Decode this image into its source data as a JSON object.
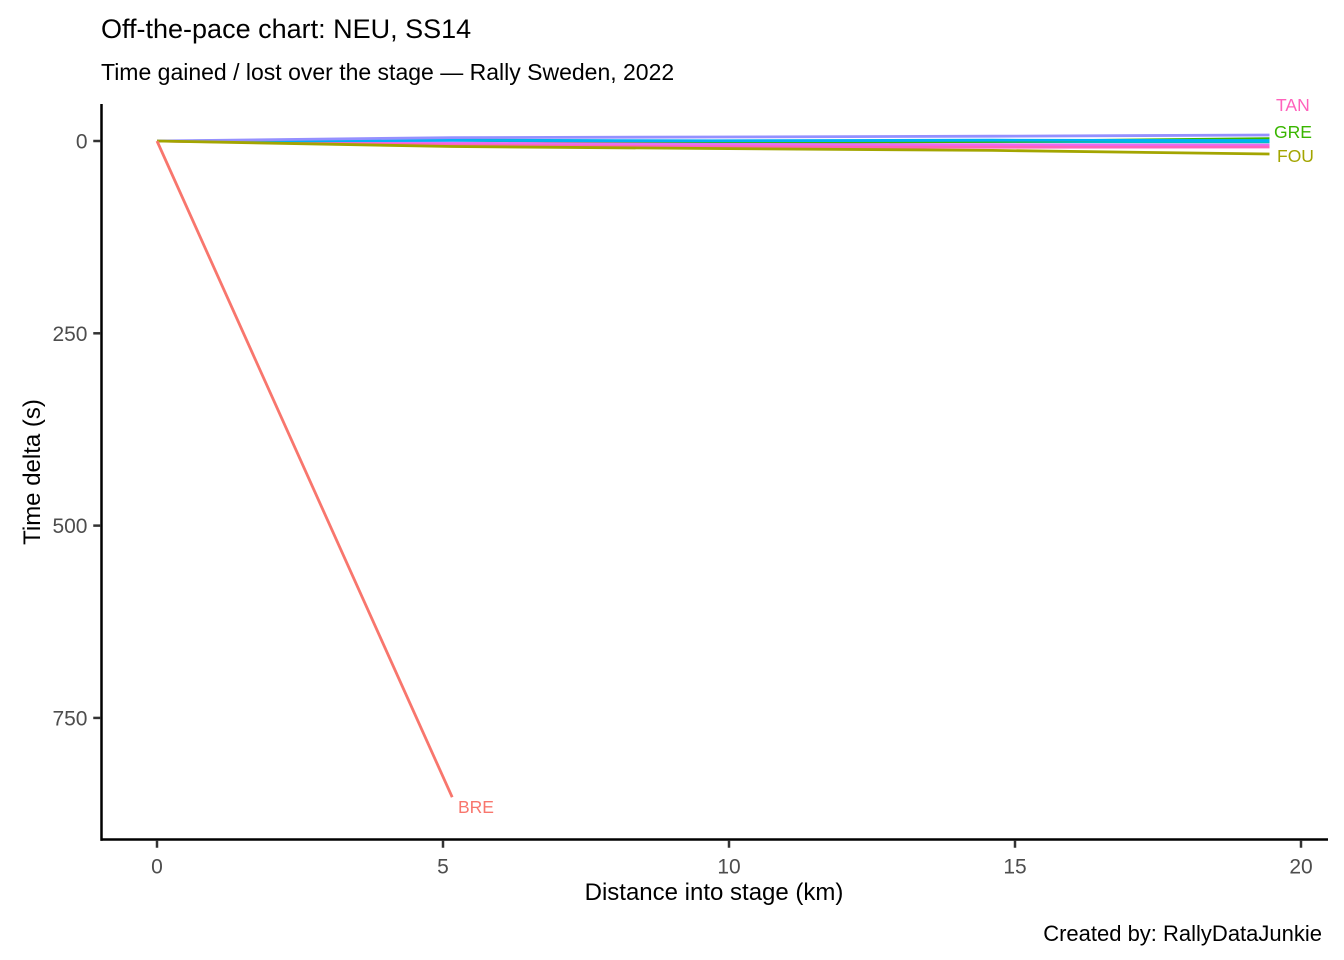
{
  "header": {
    "title": "Off-the-pace chart: NEU, SS14",
    "subtitle": "Time gained / lost over the stage — Rally Sweden, 2022"
  },
  "caption": "Created by: RallyDataJunkie",
  "chart_data": {
    "type": "line",
    "title": "Off-the-pace chart: NEU, SS14",
    "subtitle": "Time gained / lost over the stage — Rally Sweden, 2022",
    "xlabel": "Distance into stage (km)",
    "ylabel": "Time delta (s)",
    "x_ticks": [
      0,
      5,
      10,
      15,
      20
    ],
    "y_ticks": [
      0,
      250,
      500,
      750
    ],
    "xlim": [
      0,
      20
    ],
    "ylim": [
      0,
      870
    ],
    "y_axis_reversed": true,
    "grid": false,
    "legend": "none",
    "style": {
      "axis_line_color": "#000000",
      "tick_label_color": "#4d4d4d",
      "background": "#ffffff"
    },
    "series": [
      {
        "label": "",
        "color": "#D89000",
        "points": [
          [
            0,
            0
          ],
          [
            5.16,
            4.2
          ],
          [
            9.7,
            5.5
          ],
          [
            14.6,
            6.0
          ],
          [
            19.45,
            6.5
          ]
        ]
      },
      {
        "label": "",
        "color": "#00BFC4",
        "points": [
          [
            0,
            0
          ],
          [
            5.16,
            -1.6
          ],
          [
            9.7,
            0.8
          ],
          [
            14.6,
            0.8
          ],
          [
            19.45,
            1.2
          ]
        ]
      },
      {
        "label": "GRE",
        "color": "#39B600",
        "points": [
          [
            0,
            0
          ],
          [
            5.16,
            -1.2
          ],
          [
            9.7,
            2.3
          ],
          [
            14.6,
            0.5
          ],
          [
            19.45,
            -3.0
          ]
        ]
      },
      {
        "label": "",
        "color": "#E76BF3",
        "points": [
          [
            0,
            0
          ],
          [
            5.16,
            2.9
          ],
          [
            9.7,
            4.4
          ],
          [
            14.6,
            4.8
          ],
          [
            19.45,
            5.2
          ]
        ]
      },
      {
        "label": "TAN",
        "color": "#FF62BC",
        "points": [
          [
            0,
            0
          ],
          [
            5.16,
            5.2
          ],
          [
            9.7,
            7.8
          ],
          [
            14.6,
            8.1
          ],
          [
            19.45,
            7.8
          ]
        ]
      },
      {
        "label": "",
        "color": "#00B0F6",
        "points": [
          [
            0,
            0
          ],
          [
            5.16,
            -0.8
          ],
          [
            9.7,
            -0.2
          ],
          [
            14.6,
            -1.0
          ],
          [
            19.45,
            -0.6
          ]
        ]
      },
      {
        "label": "",
        "color": "#9590FF",
        "points": [
          [
            0,
            0
          ],
          [
            5.16,
            -4.4
          ],
          [
            9.7,
            -5.2
          ],
          [
            14.6,
            -6.2
          ],
          [
            19.45,
            -7.8
          ]
        ]
      },
      {
        "label": "FOU",
        "color": "#A3A500",
        "points": [
          [
            0,
            0
          ],
          [
            5.16,
            7.2
          ],
          [
            9.7,
            9.8
          ],
          [
            14.6,
            12.2
          ],
          [
            19.45,
            16.9
          ]
        ]
      },
      {
        "label": "BRE",
        "color": "#F8766D",
        "points": [
          [
            0,
            0
          ],
          [
            5.16,
            853
          ]
        ]
      }
    ]
  }
}
